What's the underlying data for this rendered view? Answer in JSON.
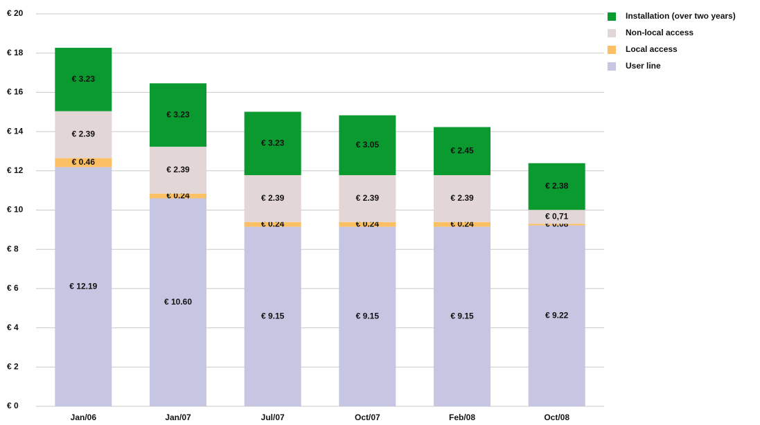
{
  "chart_data": {
    "type": "stacked_bar",
    "categories": [
      "Jan/06",
      "Jan/07",
      "Jul/07",
      "Oct/07",
      "Feb/08",
      "Oct/08"
    ],
    "series": [
      {
        "name": "User line",
        "color": "#c6c5e2",
        "values": [
          12.19,
          10.6,
          9.15,
          9.15,
          9.15,
          9.22
        ],
        "value_labels": [
          "€ 12.19",
          "€ 10.60",
          "€ 9.15",
          "€ 9.15",
          "€ 9.15",
          "€ 9.22"
        ]
      },
      {
        "name": "Local access",
        "color": "#fcc064",
        "values": [
          0.46,
          0.24,
          0.24,
          0.24,
          0.24,
          0.08
        ],
        "value_labels": [
          "€ 0.46",
          "€ 0.24",
          "€ 0.24",
          "€ 0.24",
          "€ 0.24",
          "€ 0.08"
        ]
      },
      {
        "name": "Non-local access",
        "color": "#e3d6d6",
        "values": [
          2.39,
          2.39,
          2.39,
          2.39,
          2.39,
          0.71
        ],
        "value_labels": [
          "€ 2.39",
          "€ 2.39",
          "€ 2.39",
          "€ 2.39",
          "€ 2.39",
          "€ 0,71"
        ]
      },
      {
        "name": "Installation (over two years)",
        "color": "#0b9a30",
        "values": [
          3.23,
          3.23,
          3.23,
          3.05,
          2.45,
          2.38
        ],
        "value_labels": [
          "€ 3.23",
          "€ 3.23",
          "€ 3.23",
          "€ 3.05",
          "€ 2.45",
          "€ 2.38"
        ]
      }
    ],
    "ylim": [
      0,
      20
    ],
    "yticks": [
      {
        "value": 0,
        "label": "€ 0"
      },
      {
        "value": 2,
        "label": "€ 2"
      },
      {
        "value": 4,
        "label": "€ 4"
      },
      {
        "value": 6,
        "label": "€ 6"
      },
      {
        "value": 8,
        "label": "€ 8"
      },
      {
        "value": 10,
        "label": "€ 10"
      },
      {
        "value": 12,
        "label": "€ 12"
      },
      {
        "value": 14,
        "label": "€ 14"
      },
      {
        "value": 16,
        "label": "€ 16"
      },
      {
        "value": 18,
        "label": "€ 18"
      },
      {
        "value": 20,
        "label": "€ 20"
      }
    ],
    "grid": true,
    "legend": "top-right"
  }
}
